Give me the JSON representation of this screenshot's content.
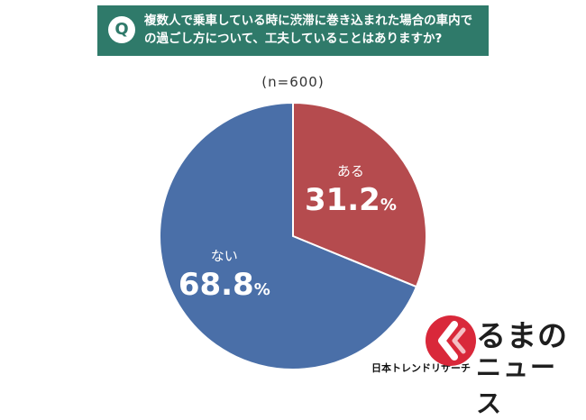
{
  "header": {
    "badge": "Q",
    "question": "複数人で乗車している時に渋滞に巻き込まれた場合の車内での過ごし方について、工夫していることはありますか?"
  },
  "sample_size": "(n=600)",
  "source": "日本トレンドリサーチ",
  "logo": {
    "text_line1": "るまの",
    "text_line2": "ニュース",
    "icon": "kuruma-news-logo-icon"
  },
  "colors": {
    "header_bg": "#2f7a6a",
    "aru": "#b54b4e",
    "nai": "#4a6fa8"
  },
  "chart_data": {
    "type": "pie",
    "title": "",
    "categories": [
      "ある",
      "ない"
    ],
    "values": [
      31.2,
      68.8
    ],
    "value_labels": [
      "31.2",
      "68.8"
    ],
    "unit": "%",
    "colors": [
      "#b54b4e",
      "#4a6fa8"
    ],
    "legend": "none"
  }
}
